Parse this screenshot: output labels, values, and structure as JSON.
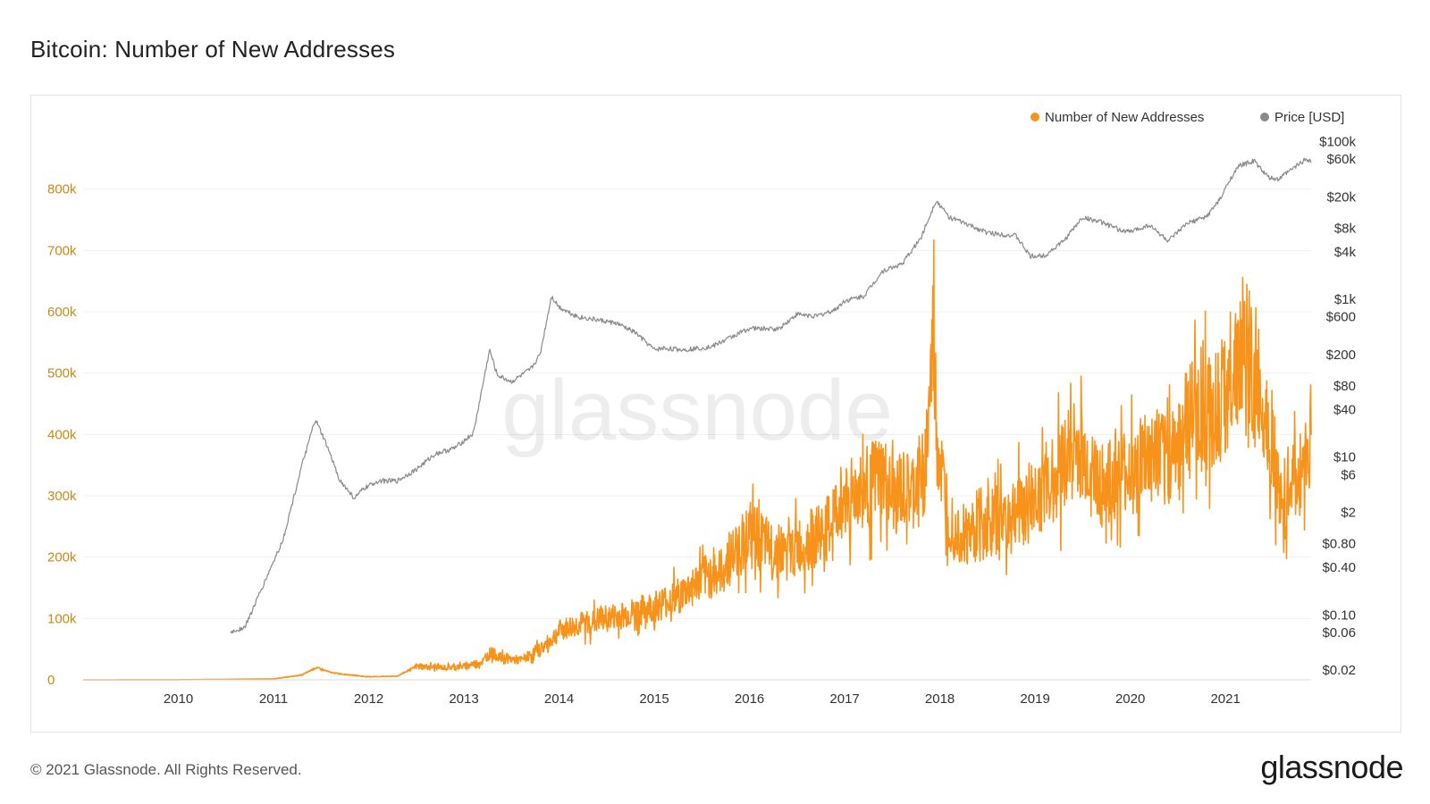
{
  "title": "Bitcoin: Number of New Addresses",
  "footer": {
    "copyright": "© 2021 Glassnode. All Rights Reserved.",
    "logo": "glassnode"
  },
  "watermark": "glassnode",
  "colors": {
    "addresses": "#f7931a",
    "price": "#8a8a8a",
    "left_axis_text": "#c98a16",
    "right_axis_text": "#333333",
    "grid": "#f0f0f0"
  },
  "chart_data": {
    "type": "line",
    "legend_position": "top-right",
    "grid": true,
    "x_range": [
      2009.0,
      2021.9
    ],
    "x_ticks": [
      2010,
      2011,
      2012,
      2013,
      2014,
      2015,
      2016,
      2017,
      2018,
      2019,
      2020,
      2021
    ],
    "left_axis": {
      "ylim": [
        0,
        900000
      ],
      "ticks": [
        0,
        100000,
        200000,
        300000,
        400000,
        500000,
        600000,
        700000,
        800000
      ],
      "tick_labels": [
        "0",
        "100k",
        "200k",
        "300k",
        "400k",
        "500k",
        "600k",
        "700k",
        "800k"
      ]
    },
    "right_axis": {
      "scale": "log",
      "ylim": [
        0.015,
        150000
      ],
      "ticks": [
        0.02,
        0.06,
        0.1,
        0.4,
        0.8,
        2,
        6,
        10,
        40,
        80,
        200,
        600,
        1000,
        4000,
        8000,
        20000,
        60000,
        100000
      ],
      "tick_labels": [
        "$0.02",
        "$0.06",
        "$0.10",
        "$0.40",
        "$0.80",
        "$2",
        "$6",
        "$10",
        "$40",
        "$80",
        "$200",
        "$600",
        "$1k",
        "$4k",
        "$8k",
        "$20k",
        "$60k",
        "$100k"
      ]
    },
    "series": [
      {
        "name": "Number of New Addresses",
        "axis": "left",
        "x": [
          2009.0,
          2010.0,
          2010.5,
          2011.0,
          2011.3,
          2011.45,
          2011.6,
          2011.8,
          2012.0,
          2012.3,
          2012.5,
          2012.8,
          2013.0,
          2013.2,
          2013.28,
          2013.4,
          2013.6,
          2013.8,
          2013.9,
          2014.0,
          2014.2,
          2014.5,
          2014.8,
          2015.0,
          2015.3,
          2015.5,
          2015.7,
          2015.9,
          2016.0,
          2016.2,
          2016.4,
          2016.6,
          2016.8,
          2017.0,
          2017.2,
          2017.4,
          2017.5,
          2017.6,
          2017.7,
          2017.85,
          2017.93,
          2017.97,
          2018.05,
          2018.15,
          2018.3,
          2018.5,
          2018.7,
          2018.9,
          2019.0,
          2019.2,
          2019.4,
          2019.5,
          2019.7,
          2019.9,
          2020.0,
          2020.2,
          2020.4,
          2020.6,
          2020.8,
          2020.95,
          2021.0,
          2021.1,
          2021.2,
          2021.35,
          2021.5,
          2021.58,
          2021.65,
          2021.75,
          2021.85,
          2021.9
        ],
        "values": [
          0,
          200,
          800,
          1500,
          8000,
          20000,
          12000,
          8000,
          5000,
          6000,
          22000,
          20000,
          22000,
          30000,
          45000,
          35000,
          32000,
          50000,
          62000,
          80000,
          90000,
          100000,
          110000,
          120000,
          140000,
          165000,
          175000,
          220000,
          240000,
          215000,
          205000,
          225000,
          240000,
          300000,
          310000,
          330000,
          290000,
          305000,
          300000,
          350000,
          560000,
          390000,
          300000,
          250000,
          235000,
          255000,
          265000,
          290000,
          300000,
          330000,
          380000,
          360000,
          315000,
          330000,
          340000,
          355000,
          360000,
          420000,
          440000,
          450000,
          470000,
          525000,
          490000,
          470000,
          390000,
          280000,
          310000,
          330000,
          360000,
          400000
        ]
      },
      {
        "name": "Price [USD]",
        "axis": "right",
        "x": [
          2010.55,
          2010.7,
          2010.9,
          2011.1,
          2011.3,
          2011.44,
          2011.55,
          2011.7,
          2011.85,
          2011.95,
          2012.1,
          2012.3,
          2012.5,
          2012.7,
          2012.9,
          2013.1,
          2013.27,
          2013.35,
          2013.5,
          2013.7,
          2013.8,
          2013.92,
          2014.0,
          2014.2,
          2014.4,
          2014.6,
          2014.8,
          2015.0,
          2015.1,
          2015.3,
          2015.6,
          2015.8,
          2016.0,
          2016.3,
          2016.5,
          2016.7,
          2016.9,
          2017.0,
          2017.2,
          2017.4,
          2017.6,
          2017.8,
          2017.96,
          2018.1,
          2018.3,
          2018.5,
          2018.8,
          2018.95,
          2019.1,
          2019.3,
          2019.5,
          2019.7,
          2019.9,
          2020.0,
          2020.2,
          2020.4,
          2020.6,
          2020.8,
          2020.95,
          2021.05,
          2021.15,
          2021.3,
          2021.45,
          2021.55,
          2021.7,
          2021.85,
          2021.9
        ],
        "values": [
          0.06,
          0.07,
          0.25,
          0.9,
          8,
          30,
          15,
          5,
          3,
          4,
          5,
          5,
          7,
          11,
          13,
          20,
          230,
          110,
          90,
          130,
          200,
          1100,
          800,
          600,
          550,
          500,
          380,
          230,
          240,
          230,
          250,
          330,
          430,
          420,
          650,
          610,
          740,
          960,
          1100,
          2300,
          2800,
          6000,
          18000,
          11000,
          8800,
          7000,
          6400,
          3500,
          3600,
          5500,
          11000,
          9500,
          7500,
          7200,
          8800,
          5500,
          9200,
          11200,
          19000,
          34000,
          50000,
          57000,
          35000,
          33000,
          45000,
          61000,
          57000
        ]
      }
    ]
  }
}
